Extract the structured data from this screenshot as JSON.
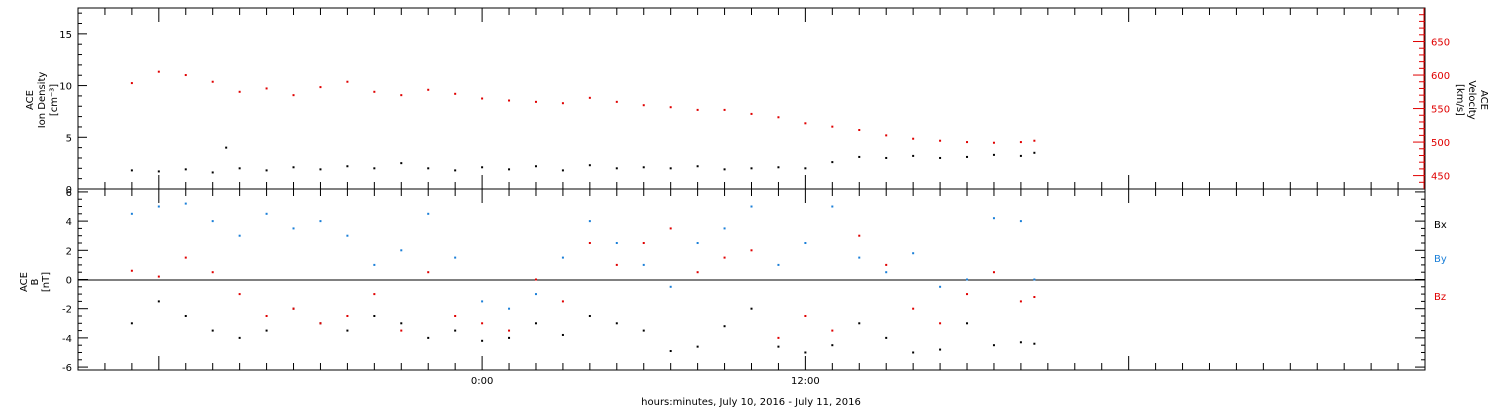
{
  "chart_data": [
    {
      "type": "scatter",
      "panel": "top",
      "ylabel_left": [
        "ACE",
        "Ion Density",
        "[cm⁻³]"
      ],
      "ylabel_right": [
        "ACE",
        "Velocity",
        "[km/s]"
      ],
      "ylim_left": [
        0,
        17.5
      ],
      "ylim_right": [
        430,
        700
      ],
      "yticks_left": [
        "0",
        "5",
        "10",
        "15"
      ],
      "yticks_right": [
        "450",
        "500",
        "550",
        "600",
        "650"
      ],
      "series": [
        {
          "axis": "left",
          "color": "#000000",
          "values": [
            [
              -13,
              1.8
            ],
            [
              -12,
              1.7
            ],
            [
              -11,
              1.9
            ],
            [
              -10,
              1.6
            ],
            [
              -9.5,
              4.0
            ],
            [
              -9,
              2.0
            ],
            [
              -8,
              1.8
            ],
            [
              -7,
              2.1
            ],
            [
              -6,
              1.9
            ],
            [
              -5,
              2.2
            ],
            [
              -4,
              2.0
            ],
            [
              -3,
              2.5
            ],
            [
              -2,
              2.0
            ],
            [
              -1,
              1.8
            ],
            [
              0,
              2.1
            ],
            [
              1,
              1.9
            ],
            [
              2,
              2.2
            ],
            [
              3,
              1.8
            ],
            [
              4,
              2.3
            ],
            [
              5,
              2.0
            ],
            [
              6,
              2.1
            ],
            [
              7,
              2.0
            ],
            [
              8,
              2.2
            ],
            [
              9,
              1.9
            ],
            [
              10,
              2.0
            ],
            [
              11,
              2.1
            ],
            [
              12,
              2.0
            ],
            [
              13,
              2.6
            ],
            [
              14,
              3.1
            ],
            [
              15,
              3.0
            ],
            [
              16,
              3.2
            ],
            [
              17,
              3.0
            ],
            [
              18,
              3.1
            ],
            [
              19,
              3.3
            ],
            [
              20,
              3.2
            ],
            [
              20.5,
              3.5
            ]
          ]
        },
        {
          "axis": "right",
          "color": "#e00000",
          "values": [
            [
              -13,
              588
            ],
            [
              -12,
              605
            ],
            [
              -11,
              600
            ],
            [
              -10,
              590
            ],
            [
              -9,
              575
            ],
            [
              -8,
              580
            ],
            [
              -7,
              570
            ],
            [
              -6,
              582
            ],
            [
              -5,
              590
            ],
            [
              -4,
              575
            ],
            [
              -3,
              570
            ],
            [
              -2,
              578
            ],
            [
              -1,
              572
            ],
            [
              0,
              565
            ],
            [
              1,
              562
            ],
            [
              2,
              560
            ],
            [
              3,
              558
            ],
            [
              4,
              566
            ],
            [
              5,
              560
            ],
            [
              6,
              555
            ],
            [
              7,
              552
            ],
            [
              8,
              548
            ],
            [
              9,
              548
            ],
            [
              10,
              542
            ],
            [
              11,
              537
            ],
            [
              12,
              528
            ],
            [
              13,
              523
            ],
            [
              14,
              518
            ],
            [
              15,
              510
            ],
            [
              16,
              505
            ],
            [
              17,
              502
            ],
            [
              18,
              500
            ],
            [
              19,
              499
            ],
            [
              20,
              500
            ],
            [
              20.5,
              502
            ]
          ]
        }
      ]
    },
    {
      "type": "scatter",
      "panel": "bottom",
      "ylabel": [
        "ACE",
        "B",
        "[nT]"
      ],
      "ylim": [
        -6.2,
        6.2
      ],
      "yticks": [
        "-6",
        "-4",
        "-2",
        "0",
        "2",
        "4",
        "6"
      ],
      "legend": [
        "Bx",
        "By",
        "Bz"
      ],
      "legend_placement": "right",
      "series": [
        {
          "name": "Bx",
          "color": "#000000",
          "values": [
            [
              -13,
              -3.0
            ],
            [
              -12,
              -1.5
            ],
            [
              -11,
              -2.5
            ],
            [
              -10,
              -3.5
            ],
            [
              -9,
              -4.0
            ],
            [
              -8,
              -3.5
            ],
            [
              -7,
              -2.0
            ],
            [
              -6,
              -3.0
            ],
            [
              -5,
              -3.5
            ],
            [
              -4,
              -2.5
            ],
            [
              -3,
              -3.0
            ],
            [
              -2,
              -4.0
            ],
            [
              -1,
              -3.5
            ],
            [
              0,
              -4.2
            ],
            [
              1,
              -4.0
            ],
            [
              2,
              -3.0
            ],
            [
              3,
              -3.8
            ],
            [
              4,
              -2.5
            ],
            [
              5,
              -3.0
            ],
            [
              6,
              -3.5
            ],
            [
              7,
              -4.9
            ],
            [
              8,
              -4.6
            ],
            [
              9,
              -3.2
            ],
            [
              10,
              -2.0
            ],
            [
              11,
              -4.6
            ],
            [
              12,
              -5.0
            ],
            [
              13,
              -4.5
            ],
            [
              14,
              -3.0
            ],
            [
              15,
              -4.0
            ],
            [
              16,
              -5.0
            ],
            [
              17,
              -4.8
            ],
            [
              18,
              -3.0
            ],
            [
              19,
              -4.5
            ],
            [
              20,
              -4.3
            ],
            [
              20.5,
              -4.4
            ]
          ]
        },
        {
          "name": "By",
          "color": "#1a7fd8",
          "values": [
            [
              -13,
              4.5
            ],
            [
              -12,
              5.0
            ],
            [
              -11,
              5.2
            ],
            [
              -10,
              4.0
            ],
            [
              -9,
              3.0
            ],
            [
              -8,
              4.5
            ],
            [
              -7,
              3.5
            ],
            [
              -6,
              4.0
            ],
            [
              -5,
              3.0
            ],
            [
              -4,
              1.0
            ],
            [
              -3,
              2.0
            ],
            [
              -2,
              4.5
            ],
            [
              -1,
              1.5
            ],
            [
              0,
              -1.5
            ],
            [
              1,
              -2.0
            ],
            [
              2,
              -1.0
            ],
            [
              3,
              1.5
            ],
            [
              4,
              4.0
            ],
            [
              5,
              2.5
            ],
            [
              6,
              1.0
            ],
            [
              7,
              -0.5
            ],
            [
              8,
              2.5
            ],
            [
              9,
              3.5
            ],
            [
              10,
              5.0
            ],
            [
              11,
              1.0
            ],
            [
              12,
              2.5
            ],
            [
              13,
              5.0
            ],
            [
              14,
              1.5
            ],
            [
              15,
              0.5
            ],
            [
              16,
              1.8
            ],
            [
              17,
              -0.5
            ],
            [
              18,
              0.0
            ],
            [
              19,
              4.2
            ],
            [
              20,
              4.0
            ],
            [
              20.5,
              0.0
            ]
          ]
        },
        {
          "name": "Bz",
          "color": "#e00000",
          "values": [
            [
              -13,
              0.6
            ],
            [
              -12,
              0.2
            ],
            [
              -11,
              1.5
            ],
            [
              -10,
              0.5
            ],
            [
              -9,
              -1.0
            ],
            [
              -8,
              -2.5
            ],
            [
              -7,
              -2.0
            ],
            [
              -6,
              -3.0
            ],
            [
              -5,
              -2.5
            ],
            [
              -4,
              -1.0
            ],
            [
              -3,
              -3.5
            ],
            [
              -2,
              0.5
            ],
            [
              -1,
              -2.5
            ],
            [
              0,
              -3.0
            ],
            [
              1,
              -3.5
            ],
            [
              2,
              0.0
            ],
            [
              3,
              -1.5
            ],
            [
              4,
              2.5
            ],
            [
              5,
              1.0
            ],
            [
              6,
              2.5
            ],
            [
              7,
              3.5
            ],
            [
              8,
              0.5
            ],
            [
              9,
              1.5
            ],
            [
              10,
              2.0
            ],
            [
              11,
              -4.0
            ],
            [
              12,
              -2.5
            ],
            [
              13,
              -3.5
            ],
            [
              14,
              3.0
            ],
            [
              15,
              1.0
            ],
            [
              16,
              -2.0
            ],
            [
              17,
              -3.0
            ],
            [
              18,
              -1.0
            ],
            [
              19,
              0.5
            ],
            [
              20,
              -1.5
            ],
            [
              20.5,
              -1.2
            ]
          ]
        }
      ]
    }
  ],
  "x_axis": {
    "label": "hours:minutes, July 10, 2016 - July 11, 2016",
    "xlim_hours": [
      -15,
      35
    ],
    "tick_labels": [
      {
        "hour": 0,
        "label": "0:00"
      },
      {
        "hour": 12,
        "label": "12:00"
      }
    ]
  },
  "colors": {
    "black": "#000000",
    "red": "#e00000",
    "blue": "#1a7fd8"
  }
}
